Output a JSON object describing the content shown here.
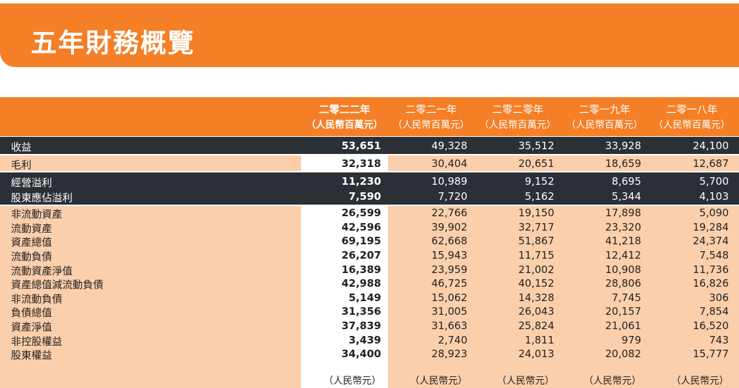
{
  "header": {
    "title": "五年財務概覽"
  },
  "table": {
    "columns": [
      {
        "year": "二零二二年",
        "unit": "（人民幣百萬元）"
      },
      {
        "year": "二零二一年",
        "unit": "（人民幣百萬元）"
      },
      {
        "year": "二零二零年",
        "unit": "（人民幣百萬元）"
      },
      {
        "year": "二零一九年",
        "unit": "（人民幣百萬元）"
      },
      {
        "year": "二零一八年",
        "unit": "（人民幣百萬元）"
      }
    ],
    "sections": [
      {
        "theme": "dark",
        "rows": [
          {
            "label": "收益",
            "values": [
              "53,651",
              "49,328",
              "35,512",
              "33,928",
              "24,100"
            ]
          }
        ]
      },
      {
        "theme": "light",
        "rows": [
          {
            "label": "毛利",
            "values": [
              "32,318",
              "30,404",
              "20,651",
              "18,659",
              "12,687"
            ]
          }
        ]
      },
      {
        "theme": "dark",
        "rows": [
          {
            "label": "經營溢利",
            "values": [
              "11,230",
              "10,989",
              "9,152",
              "8,695",
              "5,700"
            ]
          },
          {
            "label": "股東應佔溢利",
            "values": [
              "7,590",
              "7,720",
              "5,162",
              "5,344",
              "4,103"
            ]
          }
        ]
      },
      {
        "theme": "light",
        "rows": [
          {
            "label": "非流動資產",
            "values": [
              "26,599",
              "22,766",
              "19,150",
              "17,898",
              "5,090"
            ]
          },
          {
            "label": "流動資產",
            "values": [
              "42,596",
              "39,902",
              "32,717",
              "23,320",
              "19,284"
            ]
          },
          {
            "label": "資產總值",
            "values": [
              "69,195",
              "62,668",
              "51,867",
              "41,218",
              "24,374"
            ]
          },
          {
            "label": "流動負債",
            "values": [
              "26,207",
              "15,943",
              "11,715",
              "12,412",
              "7,548"
            ]
          },
          {
            "label": "流動資產淨值",
            "values": [
              "16,389",
              "23,959",
              "21,002",
              "10,908",
              "11,736"
            ]
          },
          {
            "label": "資產總值減流動負債",
            "values": [
              "42,988",
              "46,725",
              "40,152",
              "28,806",
              "16,826"
            ]
          },
          {
            "label": "非流動負債",
            "values": [
              "5,149",
              "15,062",
              "14,328",
              "7,745",
              "306"
            ]
          },
          {
            "label": "負債總值",
            "values": [
              "31,356",
              "31,005",
              "26,043",
              "20,157",
              "7,854"
            ]
          },
          {
            "label": "資產淨值",
            "values": [
              "37,839",
              "31,663",
              "25,824",
              "21,061",
              "16,520"
            ]
          },
          {
            "label": "非控股權益",
            "values": [
              "3,439",
              "2,740",
              "1,811",
              "979",
              "743"
            ]
          },
          {
            "label": "股東權益",
            "values": [
              "34,400",
              "28,923",
              "24,013",
              "20,082",
              "15,777"
            ]
          }
        ]
      }
    ],
    "footer_units": [
      "（人民幣元）",
      "（人民幣元）",
      "（人民幣元）",
      "（人民幣元）",
      "（人民幣元）"
    ]
  }
}
